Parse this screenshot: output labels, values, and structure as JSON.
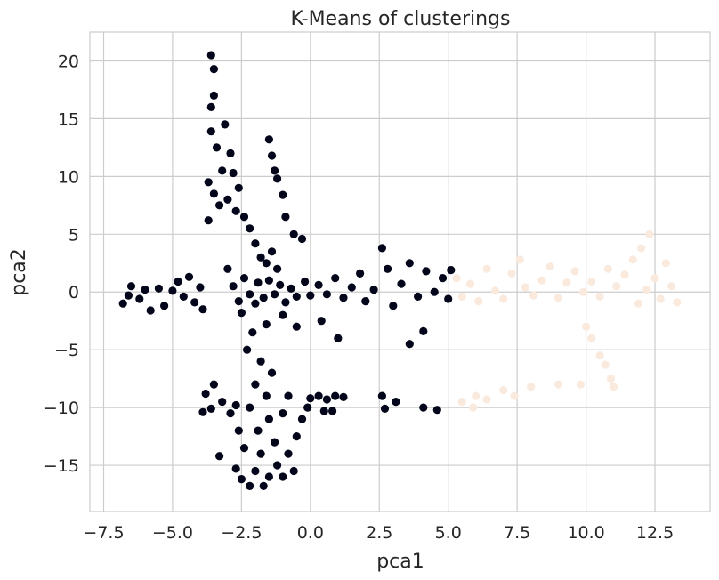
{
  "chart_data": {
    "type": "scatter",
    "title": "K-Means of clusterings",
    "xlabel": "pca1",
    "ylabel": "pca2",
    "xlim": [
      -8.0,
      14.5
    ],
    "ylim": [
      -19.0,
      22.5
    ],
    "xticks": [
      -7.5,
      -5.0,
      -2.5,
      0.0,
      2.5,
      5.0,
      7.5,
      10.0,
      12.5
    ],
    "xtick_labels": [
      "−7.5",
      "−5.0",
      "−2.5",
      "0.0",
      "2.5",
      "5.0",
      "7.5",
      "10.0",
      "12.5"
    ],
    "yticks": [
      -15,
      -10,
      -5,
      0,
      5,
      10,
      15,
      20
    ],
    "ytick_labels": [
      "−15",
      "−10",
      "−5",
      "0",
      "5",
      "10",
      "15",
      "20"
    ],
    "grid": true,
    "legend": "none",
    "series": [
      {
        "color": "#03051a",
        "points": [
          [
            -6.8,
            -1.0
          ],
          [
            -6.6,
            -0.3
          ],
          [
            -6.5,
            0.5
          ],
          [
            -6.2,
            -0.6
          ],
          [
            -6.0,
            0.2
          ],
          [
            -5.8,
            -1.6
          ],
          [
            -5.5,
            0.3
          ],
          [
            -5.3,
            -1.2
          ],
          [
            -5.0,
            0.1
          ],
          [
            -4.8,
            0.9
          ],
          [
            -4.6,
            -0.4
          ],
          [
            -4.4,
            1.3
          ],
          [
            -4.2,
            -0.9
          ],
          [
            -4.0,
            0.4
          ],
          [
            -3.9,
            -1.5
          ],
          [
            -3.7,
            6.2
          ],
          [
            -3.6,
            20.5
          ],
          [
            -3.5,
            19.3
          ],
          [
            -3.5,
            17.0
          ],
          [
            -3.6,
            13.9
          ],
          [
            -3.4,
            12.5
          ],
          [
            -3.7,
            9.5
          ],
          [
            -3.5,
            8.5
          ],
          [
            -3.3,
            7.5
          ],
          [
            -3.6,
            16.0
          ],
          [
            -3.2,
            10.5
          ],
          [
            -3.0,
            8.0
          ],
          [
            -3.1,
            14.5
          ],
          [
            -2.9,
            12.0
          ],
          [
            -2.8,
            10.3
          ],
          [
            -2.6,
            9.0
          ],
          [
            -2.7,
            7.0
          ],
          [
            -2.4,
            6.5
          ],
          [
            -2.2,
            5.5
          ],
          [
            -2.0,
            4.2
          ],
          [
            -1.8,
            3.0
          ],
          [
            -1.6,
            2.5
          ],
          [
            -1.4,
            3.5
          ],
          [
            -1.2,
            2.0
          ],
          [
            -1.5,
            13.2
          ],
          [
            -1.4,
            11.8
          ],
          [
            -1.3,
            10.5
          ],
          [
            -1.2,
            9.8
          ],
          [
            -1.0,
            8.4
          ],
          [
            -0.9,
            6.5
          ],
          [
            -0.6,
            5.0
          ],
          [
            -0.3,
            4.6
          ],
          [
            -3.0,
            2.0
          ],
          [
            -2.8,
            0.5
          ],
          [
            -2.6,
            -0.8
          ],
          [
            -2.5,
            -1.8
          ],
          [
            -2.4,
            1.2
          ],
          [
            -2.2,
            -0.2
          ],
          [
            -2.0,
            -1.0
          ],
          [
            -1.9,
            0.8
          ],
          [
            -1.7,
            -0.5
          ],
          [
            -1.5,
            1.0
          ],
          [
            -1.3,
            -0.2
          ],
          [
            -1.1,
            0.6
          ],
          [
            -0.9,
            -0.9
          ],
          [
            -0.7,
            0.3
          ],
          [
            -0.5,
            -0.4
          ],
          [
            -0.2,
            0.9
          ],
          [
            0.0,
            -0.3
          ],
          [
            0.3,
            0.6
          ],
          [
            0.6,
            -0.2
          ],
          [
            0.9,
            1.2
          ],
          [
            1.2,
            -0.5
          ],
          [
            1.5,
            0.4
          ],
          [
            1.8,
            1.6
          ],
          [
            2.0,
            -0.8
          ],
          [
            2.3,
            0.2
          ],
          [
            2.6,
            3.8
          ],
          [
            2.8,
            2.0
          ],
          [
            3.0,
            -1.2
          ],
          [
            3.3,
            0.7
          ],
          [
            3.6,
            2.5
          ],
          [
            3.9,
            -0.4
          ],
          [
            4.2,
            1.8
          ],
          [
            4.5,
            0.0
          ],
          [
            4.8,
            1.2
          ],
          [
            5.0,
            -0.6
          ],
          [
            5.1,
            1.9
          ],
          [
            4.1,
            -3.4
          ],
          [
            3.6,
            -4.5
          ],
          [
            1.0,
            -4.0
          ],
          [
            0.4,
            -2.5
          ],
          [
            -0.5,
            -3.0
          ],
          [
            -1.0,
            -2.0
          ],
          [
            -1.6,
            -2.8
          ],
          [
            -2.1,
            -3.5
          ],
          [
            -2.3,
            -5.0
          ],
          [
            -1.8,
            -6.0
          ],
          [
            -1.4,
            -7.0
          ],
          [
            -2.0,
            -8.0
          ],
          [
            -1.6,
            -9.0
          ],
          [
            -2.2,
            -10.0
          ],
          [
            -1.5,
            -11.0
          ],
          [
            -1.9,
            -12.0
          ],
          [
            -1.3,
            -13.0
          ],
          [
            -1.8,
            -14.0
          ],
          [
            -1.2,
            -15.0
          ],
          [
            -2.0,
            -15.5
          ],
          [
            -1.5,
            -16.0
          ],
          [
            -2.2,
            -16.8
          ],
          [
            -1.7,
            -16.8
          ],
          [
            -1.0,
            -16.0
          ],
          [
            -0.6,
            -15.5
          ],
          [
            -0.8,
            -14.0
          ],
          [
            -0.5,
            -12.5
          ],
          [
            -0.3,
            -11.0
          ],
          [
            -0.1,
            -10.0
          ],
          [
            -1.0,
            -10.5
          ],
          [
            -0.8,
            -9.0
          ],
          [
            -2.4,
            -13.5
          ],
          [
            -2.6,
            -12.0
          ],
          [
            -3.3,
            -14.2
          ],
          [
            -3.5,
            -8.0
          ],
          [
            -3.8,
            -8.8
          ],
          [
            -3.2,
            -9.5
          ],
          [
            -3.6,
            -10.1
          ],
          [
            -3.9,
            -10.4
          ],
          [
            -2.9,
            -10.5
          ],
          [
            -2.7,
            -9.8
          ],
          [
            0.0,
            -9.2
          ],
          [
            0.3,
            -9.0
          ],
          [
            0.6,
            -9.3
          ],
          [
            0.9,
            -9.0
          ],
          [
            1.2,
            -9.1
          ],
          [
            0.5,
            -10.3
          ],
          [
            0.8,
            -10.3
          ],
          [
            2.6,
            -9.0
          ],
          [
            2.7,
            -10.1
          ],
          [
            3.1,
            -9.5
          ],
          [
            4.1,
            -10.0
          ],
          [
            4.6,
            -10.2
          ],
          [
            -2.7,
            -15.3
          ],
          [
            -2.5,
            -16.2
          ]
        ]
      },
      {
        "color": "#faeade",
        "points": [
          [
            5.3,
            1.2
          ],
          [
            5.5,
            -0.4
          ],
          [
            5.8,
            0.7
          ],
          [
            6.1,
            -0.8
          ],
          [
            6.4,
            2.0
          ],
          [
            6.7,
            0.1
          ],
          [
            7.0,
            -0.6
          ],
          [
            7.3,
            1.6
          ],
          [
            7.6,
            2.8
          ],
          [
            7.8,
            0.4
          ],
          [
            8.1,
            -0.3
          ],
          [
            8.4,
            1.0
          ],
          [
            8.7,
            2.2
          ],
          [
            9.0,
            -0.5
          ],
          [
            9.3,
            0.8
          ],
          [
            9.6,
            1.8
          ],
          [
            9.9,
            0.0
          ],
          [
            10.2,
            0.9
          ],
          [
            10.5,
            -0.4
          ],
          [
            10.8,
            2.0
          ],
          [
            11.1,
            0.5
          ],
          [
            11.4,
            1.5
          ],
          [
            11.7,
            2.8
          ],
          [
            12.0,
            3.8
          ],
          [
            12.3,
            5.0
          ],
          [
            12.5,
            1.2
          ],
          [
            12.7,
            -0.6
          ],
          [
            12.9,
            2.5
          ],
          [
            13.1,
            0.5
          ],
          [
            13.3,
            -0.9
          ],
          [
            11.9,
            -1.0
          ],
          [
            12.2,
            0.2
          ],
          [
            10.0,
            -3.0
          ],
          [
            10.2,
            -4.0
          ],
          [
            10.5,
            -5.5
          ],
          [
            10.7,
            -6.3
          ],
          [
            10.9,
            -7.5
          ],
          [
            11.0,
            -8.2
          ],
          [
            9.0,
            -8.0
          ],
          [
            8.0,
            -8.2
          ],
          [
            7.0,
            -8.5
          ],
          [
            6.0,
            -9.0
          ],
          [
            5.5,
            -9.5
          ],
          [
            5.9,
            -10.0
          ],
          [
            6.4,
            -9.3
          ],
          [
            7.4,
            -9.0
          ],
          [
            9.8,
            -8.0
          ]
        ]
      }
    ]
  }
}
